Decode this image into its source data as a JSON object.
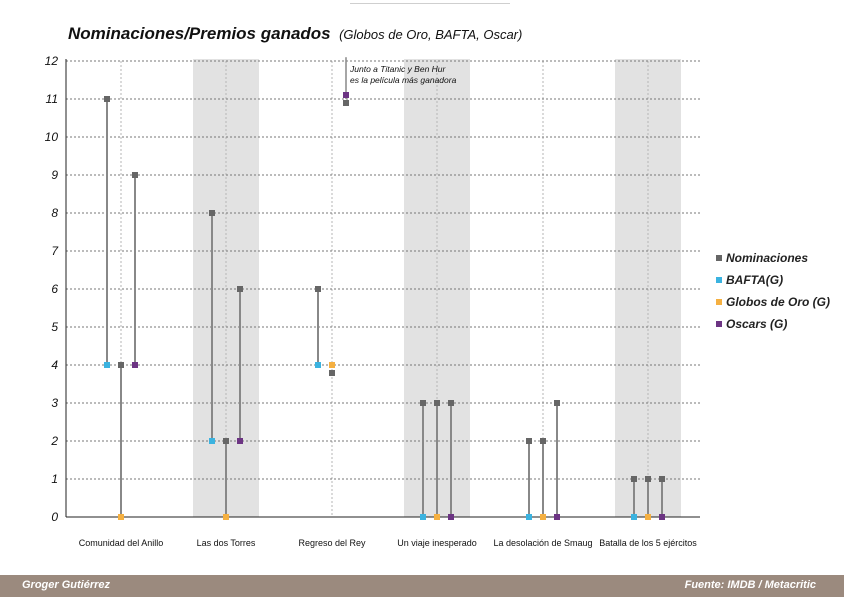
{
  "header": {
    "title": "Nominaciones/Premios ganados",
    "subtitle": "(Globos de Oro, BAFTA, Oscar)"
  },
  "legend": {
    "items": [
      {
        "label": "Nominaciones",
        "color": "#666666"
      },
      {
        "label": "BAFTA(G)",
        "color": "#3bb3e0"
      },
      {
        "label": "Globos de Oro (G)",
        "color": "#f5b041"
      },
      {
        "label": "Oscars (G)",
        "color": "#6c3483"
      }
    ]
  },
  "footer": {
    "author": "Groger Gutiérrez",
    "source": "Fuente: IMDB / Metacritic"
  },
  "chart_data": {
    "type": "dot-range",
    "title": "Nominaciones/Premios ganados",
    "subtitle": "(Globos de Oro, BAFTA, Oscar)",
    "ylim": [
      0,
      12
    ],
    "yticks": [
      0,
      1,
      2,
      3,
      4,
      5,
      6,
      7,
      8,
      9,
      10,
      11,
      12
    ],
    "grid": true,
    "legend_position": "right",
    "categories": [
      "Comunidad del Anillo",
      "Las dos Torres",
      "Regreso del Rey",
      "Un viaje inesperado",
      "La desolación de Smaug",
      "Batalla de los 5 ejércitos"
    ],
    "shaded_categories": [
      1,
      3,
      5
    ],
    "awards": [
      "BAFTA(G)",
      "Globos de Oro (G)",
      "Oscars (G)"
    ],
    "series": [
      {
        "name": "Nominaciones",
        "values": [
          [
            11,
            4,
            9
          ],
          [
            8,
            2,
            6
          ],
          [
            6,
            4,
            null
          ],
          [
            3,
            3,
            3
          ],
          [
            2,
            2,
            3
          ],
          [
            1,
            1,
            1
          ]
        ]
      },
      {
        "name": "BAFTA(G)",
        "values": [
          4,
          2,
          4,
          0,
          0,
          0
        ]
      },
      {
        "name": "Globos de Oro (G)",
        "values": [
          0,
          0,
          4,
          0,
          0,
          0
        ]
      },
      {
        "name": "Oscars (G)",
        "values": [
          4,
          2,
          11,
          0,
          0,
          0
        ]
      }
    ],
    "annotation": {
      "category": "Regreso del Rey",
      "lines": [
        "Junto a Titanic y Ben Hur",
        "es la película más ganadora"
      ]
    }
  }
}
